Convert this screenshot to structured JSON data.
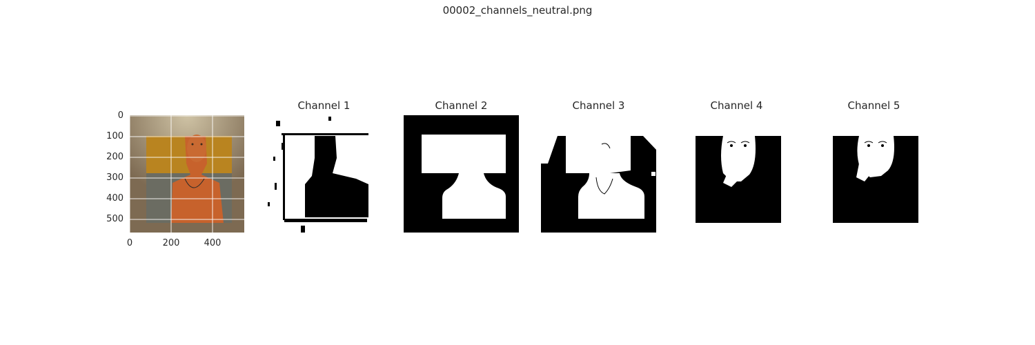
{
  "suptitle": "00002_channels_neutral.png",
  "original": {
    "yticks": [
      "0",
      "100",
      "200",
      "300",
      "400",
      "500"
    ],
    "xticks": [
      "0",
      "200",
      "400"
    ]
  },
  "channels": [
    {
      "title": "Channel 1"
    },
    {
      "title": "Channel 2"
    },
    {
      "title": "Channel 3"
    },
    {
      "title": "Channel 4"
    },
    {
      "title": "Channel 5"
    }
  ],
  "colors": {
    "wall": "#7d6a52",
    "orange_band": "#b98420",
    "body": "#c7622c",
    "gray_band": "#6b6c62",
    "mask_black": "#000000",
    "mask_white": "#ffffff"
  }
}
